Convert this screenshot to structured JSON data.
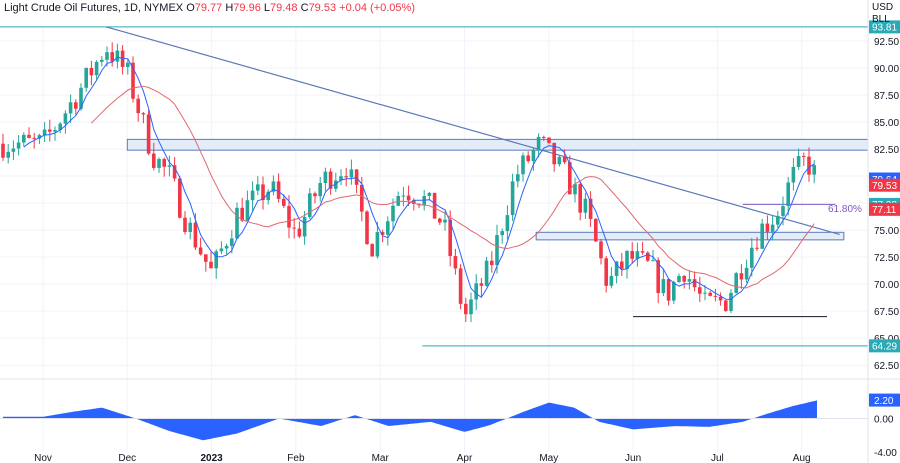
{
  "header": {
    "instrument": "Light Crude Oil Futures, 1D, NYMEX",
    "o_label": "O",
    "o_value": "79.77",
    "h_label": "H",
    "h_value": "79.96",
    "l_label": "L",
    "l_value": "79.48",
    "c_label": "C",
    "c_value": "79.53",
    "change": "+0.04 (+0.05%)",
    "currency_line1": "USD",
    "currency_line2": "BLL"
  },
  "colors": {
    "up": "#26a69a",
    "down": "#f23645",
    "fast_ma": "#2962ff",
    "slow_ma": "#e0686f",
    "trendline": "#5b7ab8",
    "zone_fill": "#e3ecf9",
    "zone_stroke": "#5b7ab8",
    "level_line": "#2aa9b6",
    "oscillator": "#2962ff",
    "fib_label": "#7e57c2"
  },
  "chart_data": {
    "type": "candlestick",
    "price_axis": {
      "min": 61.5,
      "max": 93.8,
      "ticks": [
        "92.50",
        "90.00",
        "87.50",
        "85.00",
        "82.50",
        "80.00",
        "77.50",
        "75.00",
        "72.50",
        "70.00",
        "67.50",
        "65.00",
        "62.50"
      ]
    },
    "x_axis_labels": [
      "Nov",
      "Dec",
      "2023",
      "Feb",
      "Mar",
      "Apr",
      "May",
      "Jun",
      "Jul",
      "Aug"
    ],
    "price_badges": [
      {
        "value": "93.81",
        "kind": "level"
      },
      {
        "value": "79.64",
        "kind": "fast_ma"
      },
      {
        "value": "79.53",
        "kind": "last"
      },
      {
        "value": "77.38",
        "kind": "level"
      },
      {
        "value": "77.11",
        "kind": "slow_ma"
      },
      {
        "value": "64.29",
        "kind": "level"
      }
    ],
    "fib_label": "61.80%",
    "zones": [
      {
        "from": 82.4,
        "to": 83.4
      },
      {
        "from": 74.1,
        "to": 74.8
      }
    ],
    "levels": [
      {
        "value": 93.81
      },
      {
        "value": 64.29
      },
      {
        "value": 77.38
      }
    ],
    "support_line": {
      "value": 67.0,
      "start_month": 7.0,
      "end_month": 9.3
    },
    "trendline": [
      {
        "month": 0.75,
        "price": 93.81
      },
      {
        "month": 9.45,
        "price": 74.6
      }
    ],
    "keyframes": [
      [
        0.0,
        83.0
      ],
      [
        0.4,
        87.5
      ],
      [
        0.75,
        92.0
      ],
      [
        1.0,
        89.5
      ],
      [
        1.3,
        82.0
      ],
      [
        1.5,
        80.0
      ],
      [
        1.7,
        75.8
      ],
      [
        2.0,
        71.0
      ],
      [
        2.3,
        76.5
      ],
      [
        2.7,
        79.0
      ],
      [
        3.0,
        74.5
      ],
      [
        3.3,
        79.5
      ],
      [
        3.6,
        81.0
      ],
      [
        3.9,
        73.5
      ],
      [
        4.25,
        79.0
      ],
      [
        4.5,
        78.0
      ],
      [
        4.75,
        75.5
      ],
      [
        5.0,
        67.0
      ],
      [
        5.3,
        71.5
      ],
      [
        5.6,
        80.0
      ],
      [
        5.9,
        83.0
      ],
      [
        6.2,
        80.0
      ],
      [
        6.45,
        76.5
      ],
      [
        6.7,
        70.0
      ],
      [
        6.95,
        72.5
      ],
      [
        7.2,
        71.5
      ],
      [
        7.4,
        69.0
      ],
      [
        7.6,
        71.5
      ],
      [
        7.85,
        68.0
      ],
      [
        8.1,
        68.5
      ],
      [
        8.3,
        72.0
      ],
      [
        8.5,
        75.0
      ],
      [
        8.7,
        76.5
      ],
      [
        8.9,
        80.0
      ],
      [
        9.05,
        81.5
      ],
      [
        9.2,
        79.5
      ]
    ],
    "oscillator": {
      "min": -4.0,
      "max": 4.0,
      "ticks": [
        "2.20",
        "0.00",
        "-4.00"
      ],
      "current": "2.20",
      "keyframes": [
        [
          0.0,
          0.2
        ],
        [
          0.35,
          0.8
        ],
        [
          0.7,
          1.3
        ],
        [
          1.1,
          0.0
        ],
        [
          1.5,
          -1.5
        ],
        [
          1.9,
          -2.6
        ],
        [
          2.3,
          -1.8
        ],
        [
          2.8,
          0.0
        ],
        [
          3.3,
          -0.9
        ],
        [
          3.7,
          0.4
        ],
        [
          4.1,
          -0.9
        ],
        [
          4.6,
          -0.4
        ],
        [
          5.0,
          -1.6
        ],
        [
          5.3,
          -0.8
        ],
        [
          5.7,
          0.8
        ],
        [
          6.0,
          1.9
        ],
        [
          6.3,
          1.3
        ],
        [
          6.6,
          -0.4
        ],
        [
          7.0,
          -1.3
        ],
        [
          7.5,
          -0.9
        ],
        [
          7.9,
          -1.0
        ],
        [
          8.3,
          -0.4
        ],
        [
          8.6,
          0.6
        ],
        [
          8.9,
          1.5
        ],
        [
          9.2,
          2.2
        ]
      ]
    }
  }
}
